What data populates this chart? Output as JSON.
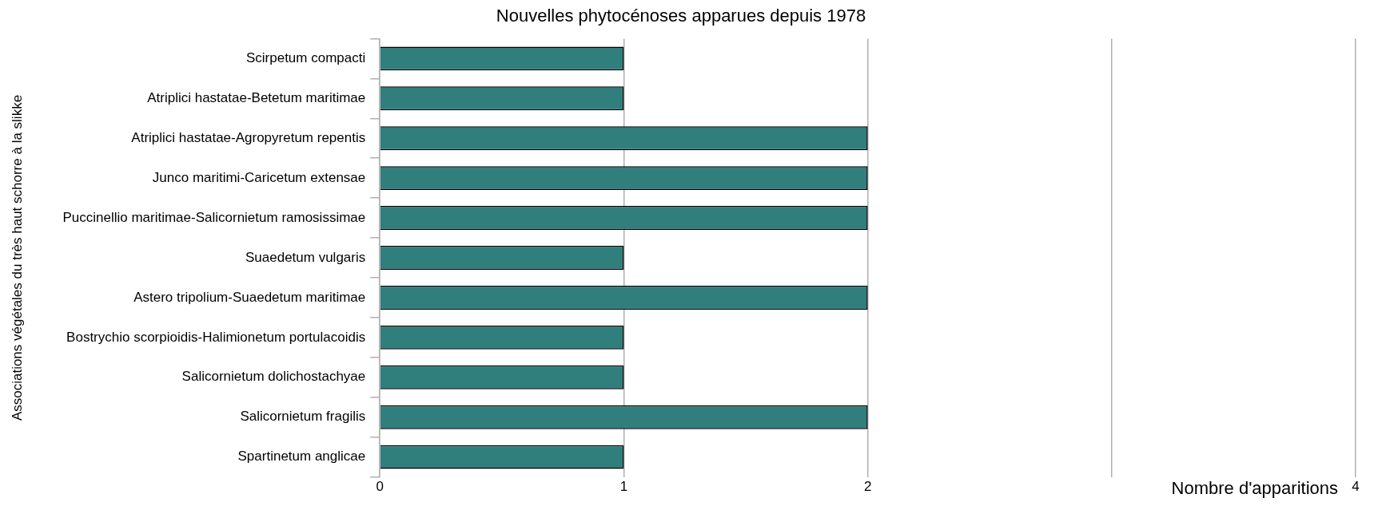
{
  "chart_data": {
    "type": "bar",
    "orientation": "horizontal",
    "title": "Nouvelles phytocénoses apparues depuis 1978",
    "xlabel": "Nombre d'apparitions",
    "ylabel": "Associations végétales du très haut schorre à la slikke",
    "categories": [
      "Scirpetum compacti",
      "Atriplici hastatae-Betetum maritimae",
      "Atriplici hastatae-Agropyretum repentis",
      "Junco maritimi-Caricetum extensae",
      "Puccinellio maritimae-Salicornietum ramosissimae",
      "Suaedetum vulgaris",
      "Astero tripolium-Suaedetum maritimae",
      "Bostrychio scorpioidis-Halimionetum portulacoidis",
      "Salicornietum dolichostachyae",
      "Salicornietum fragilis",
      "Spartinetum anglicae"
    ],
    "values": [
      1,
      1,
      2,
      2,
      2,
      1,
      2,
      1,
      1,
      2,
      1
    ],
    "color": "#317f7c",
    "xlim": [
      0,
      4
    ],
    "xticks": [
      0,
      1,
      2,
      {
        "value": 3,
        "label": null
      },
      4
    ],
    "grid": "x",
    "legend": false
  }
}
